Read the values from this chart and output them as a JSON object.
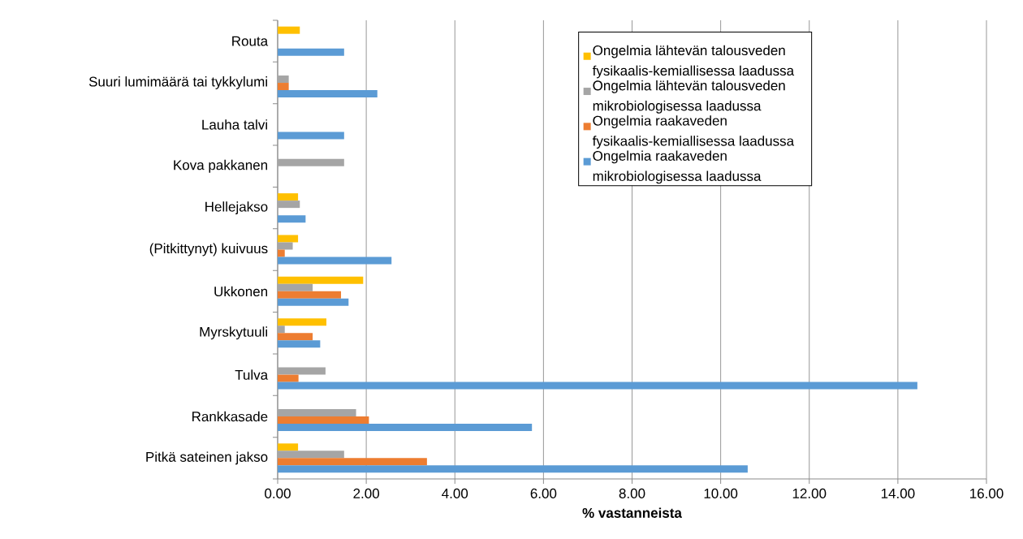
{
  "chart_data": {
    "type": "bar",
    "orientation": "horizontal",
    "xlabel": "% vastanneista",
    "categories": [
      "Routa",
      "Suuri lumimäärä tai tykkylumi",
      "Lauha talvi",
      "Kova pakkanen",
      "Hellejakso",
      "(Pitkittynyt) kuivuus",
      "Ukkonen",
      "Myrskytuuli",
      "Tulva",
      "Rankkasade",
      "Pitkä sateinen jakso"
    ],
    "series": [
      {
        "name": "Ongelmia lähtevän talousveden fysikaalis-kemiallisessa laadussa",
        "color": "#ffc000",
        "values": [
          0.5,
          null,
          null,
          null,
          0.46,
          0.46,
          1.93,
          1.1,
          null,
          null,
          0.46
        ]
      },
      {
        "name": "Ongelmia lähtevän talousveden mikrobiologisessa laadussa",
        "color": "#a5a5a5",
        "values": [
          null,
          0.25,
          null,
          1.5,
          0.5,
          0.34,
          0.79,
          0.16,
          1.08,
          1.77,
          1.5
        ]
      },
      {
        "name": "Ongelmia raakaveden fysikaalis-kemiallisessa laadussa",
        "color": "#ed7d31",
        "values": [
          null,
          0.25,
          null,
          null,
          null,
          0.16,
          1.43,
          0.79,
          0.47,
          2.06,
          3.37
        ]
      },
      {
        "name": "Ongelmia raakaveden mikrobiologisessa laadussa",
        "color": "#5b9bd5",
        "values": [
          1.5,
          2.25,
          1.5,
          null,
          0.63,
          2.57,
          1.6,
          0.96,
          14.44,
          5.74,
          10.61
        ]
      }
    ],
    "xlim": [
      0,
      16
    ],
    "xticks": [
      {
        "value": 0,
        "label": "0.00"
      },
      {
        "value": 2,
        "label": "2.00"
      },
      {
        "value": 4,
        "label": "4.00"
      },
      {
        "value": 6,
        "label": "6.00"
      },
      {
        "value": 8,
        "label": "8.00"
      },
      {
        "value": 10,
        "label": "10.00"
      },
      {
        "value": 12,
        "label": "12.00"
      },
      {
        "value": 14,
        "label": "14.00"
      },
      {
        "value": 16,
        "label": "16.00"
      }
    ],
    "grid": "x",
    "legend": "top right"
  }
}
